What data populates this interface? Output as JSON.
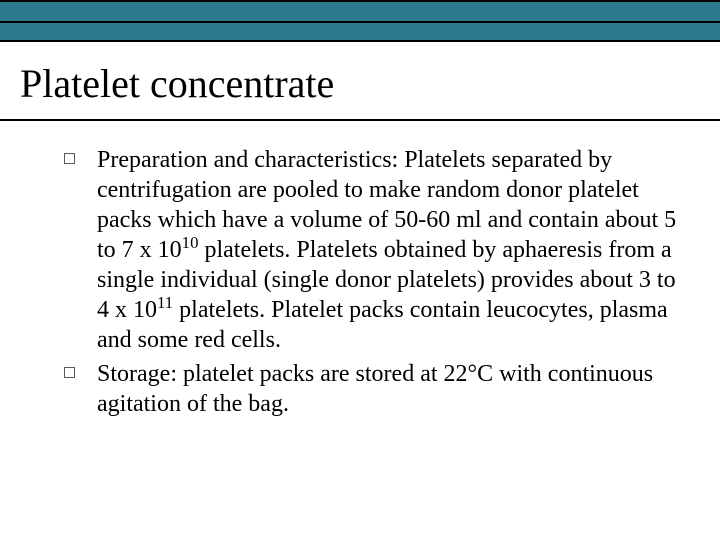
{
  "header": {
    "bar_color": "#2a7a8c",
    "border_color": "#000000"
  },
  "title": "Platelet concentrate",
  "bullets": [
    {
      "html": "Preparation and characteristics: Platelets separated by centrifugation are pooled to make random donor platelet packs which have a volume of 50-60 ml and contain about 5 to 7 x 10<span class=\"sup\">10</span> platelets. Platelets obtained by aphaeresis from a single individual (single donor platelets) provides about 3 to 4 x 10<span class=\"sup\">11</span> platelets. Platelet packs contain leucocytes, plasma and some red cells."
    },
    {
      "html": "Storage: platelet packs are stored at 22°C with continuous agitation of the bag."
    }
  ],
  "style": {
    "title_fontsize": 40,
    "body_fontsize": 24,
    "bullet_marker_color": "#5a5a5a",
    "background": "#ffffff"
  }
}
